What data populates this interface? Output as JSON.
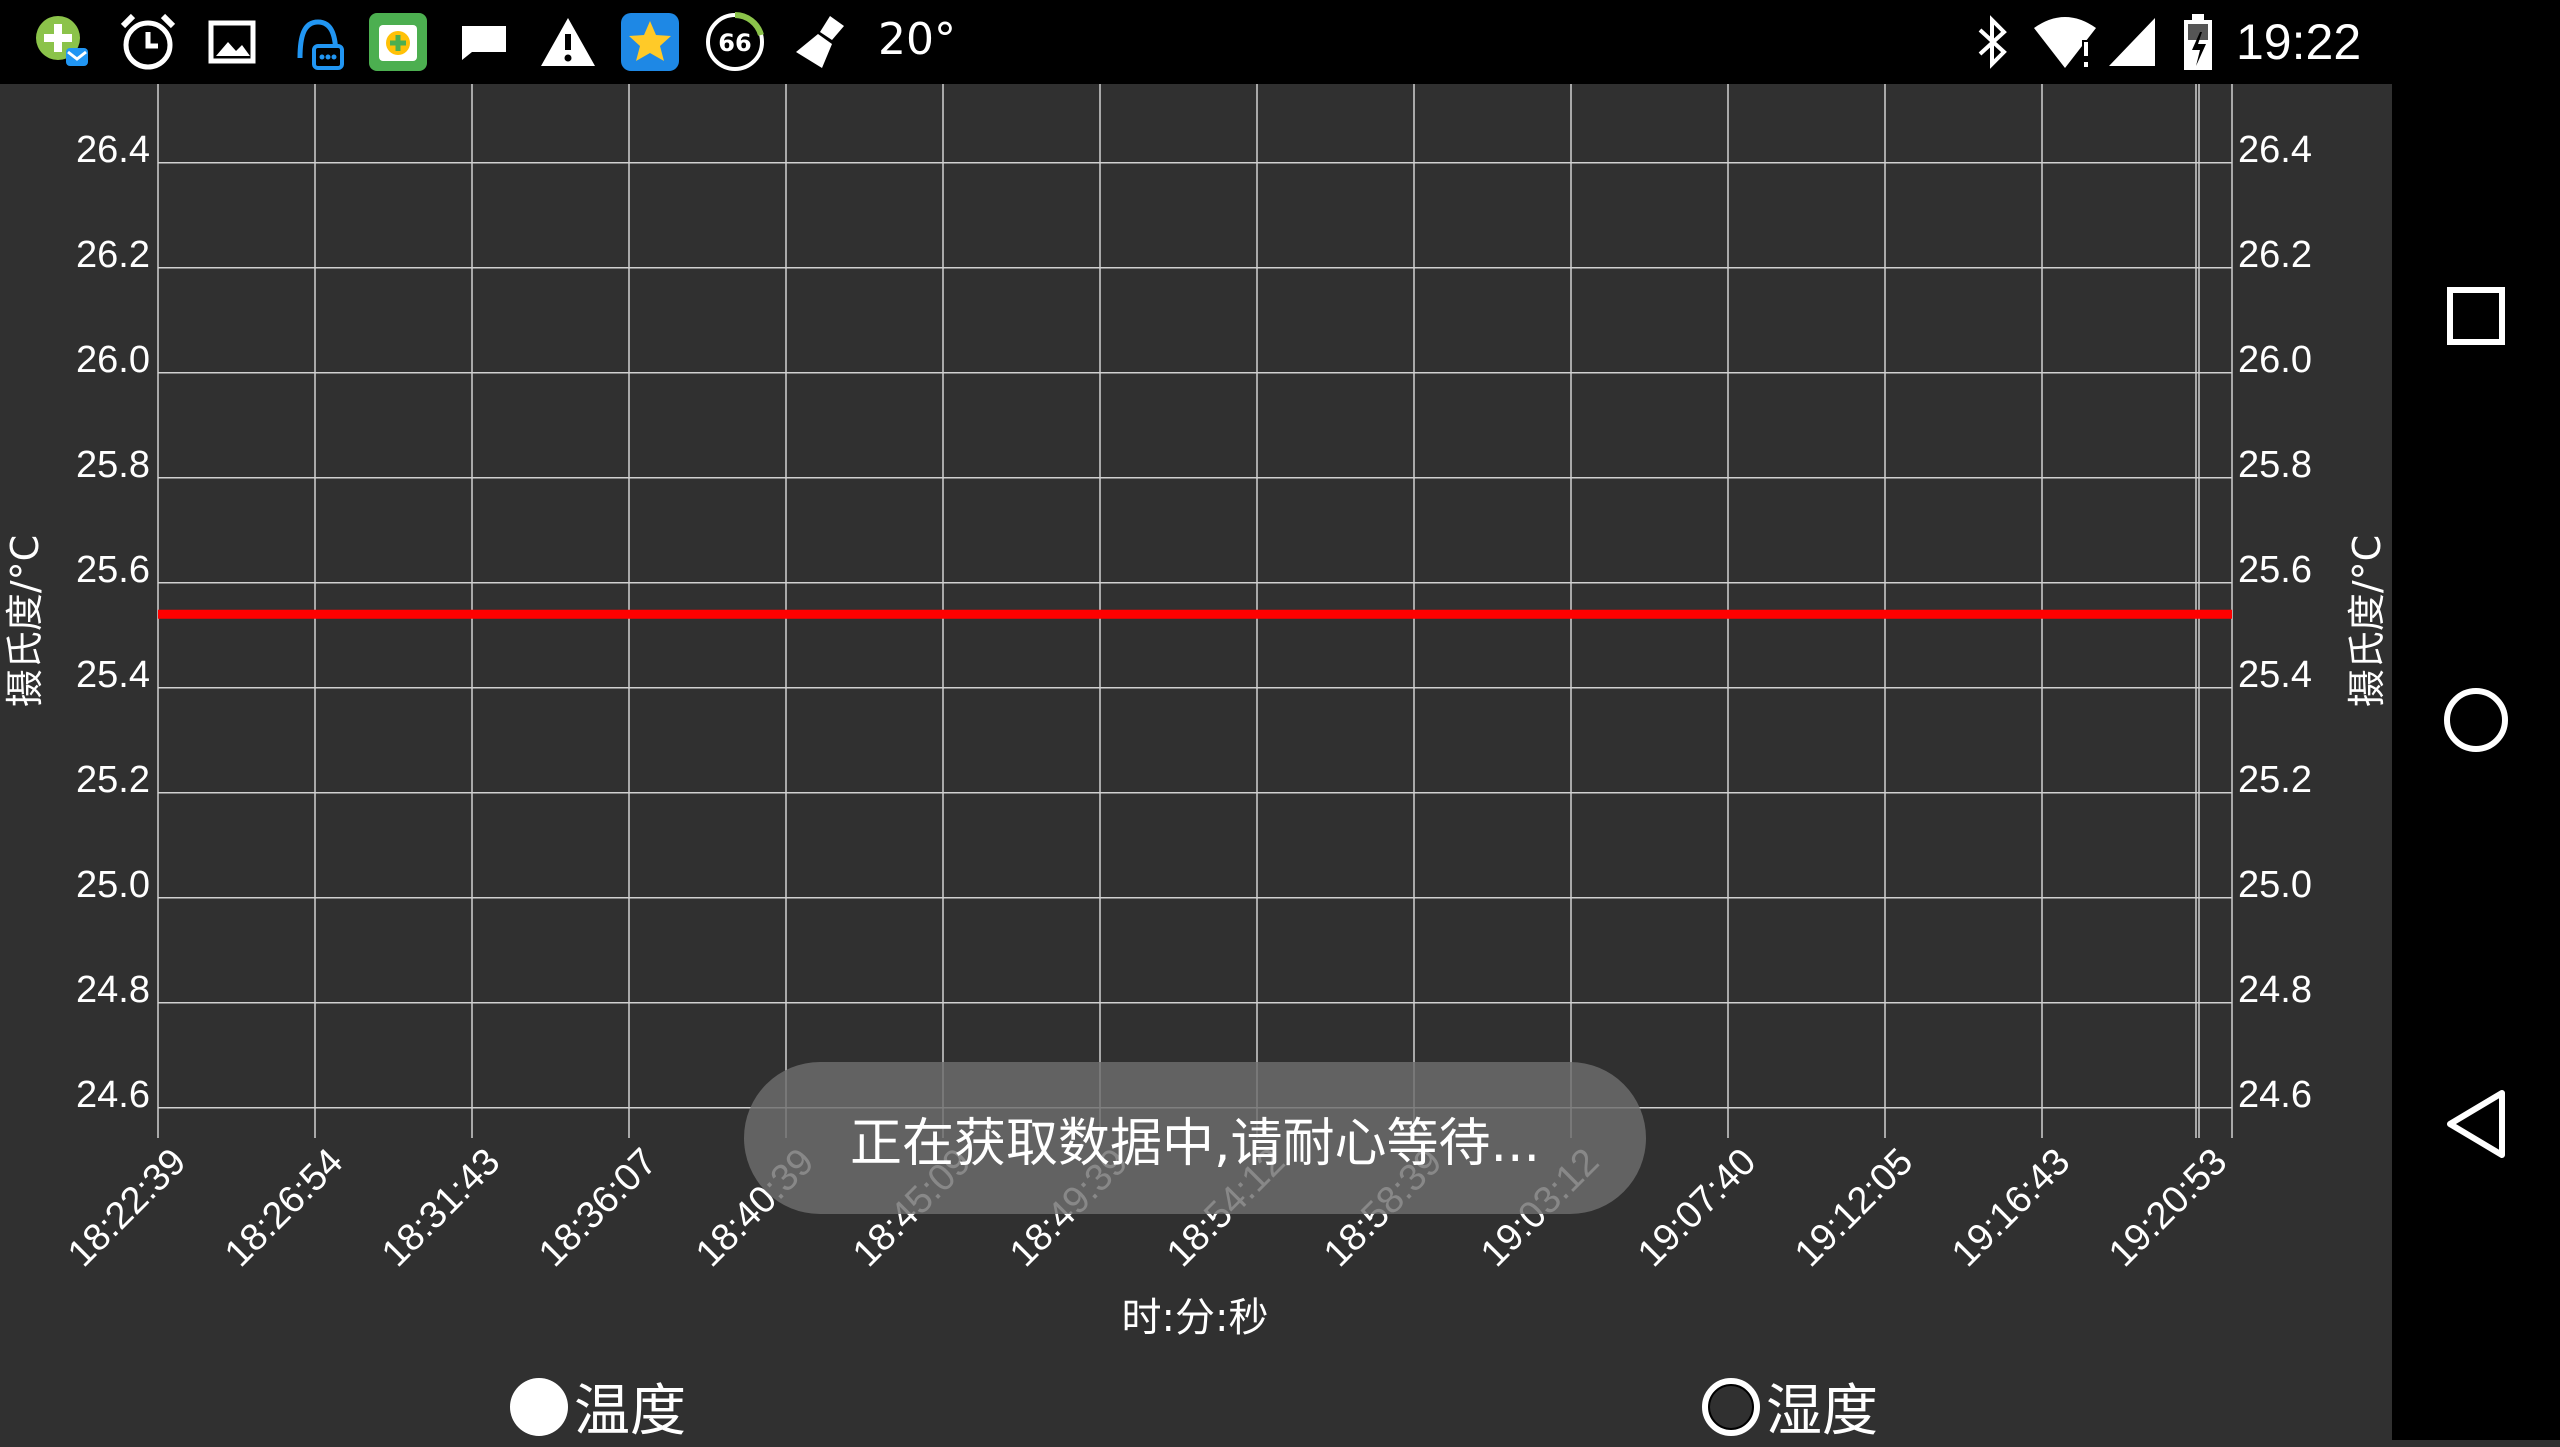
{
  "status_bar": {
    "icons": [
      "app-plus-mail-icon",
      "alarm-clock-icon",
      "gallery-icon",
      "qq-chat-icon",
      "app-store-icon",
      "chat-bubble-icon",
      "warning-icon",
      "star-app-icon",
      "speed-66-icon",
      "broom-cleaner-icon"
    ],
    "speed_badge": "66",
    "temperature": "20°",
    "right_icons": [
      "bluetooth-icon",
      "wifi-icon",
      "cell-signal-icon",
      "battery-charging-icon"
    ],
    "time": "19:22"
  },
  "chart_data": {
    "type": "line",
    "title": "",
    "xlabel": "时:分:秒",
    "ylabel_left": "摄氏度/°C",
    "ylabel_right": "摄氏度/°C",
    "ylim": [
      24.55,
      26.55
    ],
    "yticks": [
      "26.4",
      "26.2",
      "26.0",
      "25.8",
      "25.6",
      "25.4",
      "25.2",
      "25.0",
      "24.8",
      "24.6"
    ],
    "ytick_values": [
      26.4,
      26.2,
      26.0,
      25.8,
      25.6,
      25.4,
      25.2,
      25.0,
      24.8,
      24.6
    ],
    "categories": [
      "18:22:39",
      "18:26:54",
      "18:31:43",
      "18:36:07",
      "18:40:39",
      "18:45:09",
      "18:49:39",
      "18:54:12",
      "18:58:39",
      "19:03:12",
      "19:07:40",
      "19:12:05",
      "19:16:43",
      "19:20:53"
    ],
    "grid": true,
    "series": [
      {
        "color": "#ff0000",
        "values": [
          25.54,
          25.54,
          25.54,
          25.54,
          25.54,
          25.54,
          25.54,
          25.54,
          25.54,
          25.54,
          25.54,
          25.54,
          25.54,
          25.54
        ]
      }
    ]
  },
  "toast": "正在获取数据中,请耐心等待...",
  "radios": {
    "temperature": {
      "label": "温度",
      "selected": true
    },
    "humidity": {
      "label": "湿度",
      "selected": false
    }
  },
  "nav": {
    "recents": "square-recents-icon",
    "home": "circle-home-icon",
    "back": "triangle-back-icon"
  },
  "colors": {
    "background": "#303030",
    "grid": "#d0d0d0",
    "line": "#ff0000",
    "bars": "#000000"
  }
}
